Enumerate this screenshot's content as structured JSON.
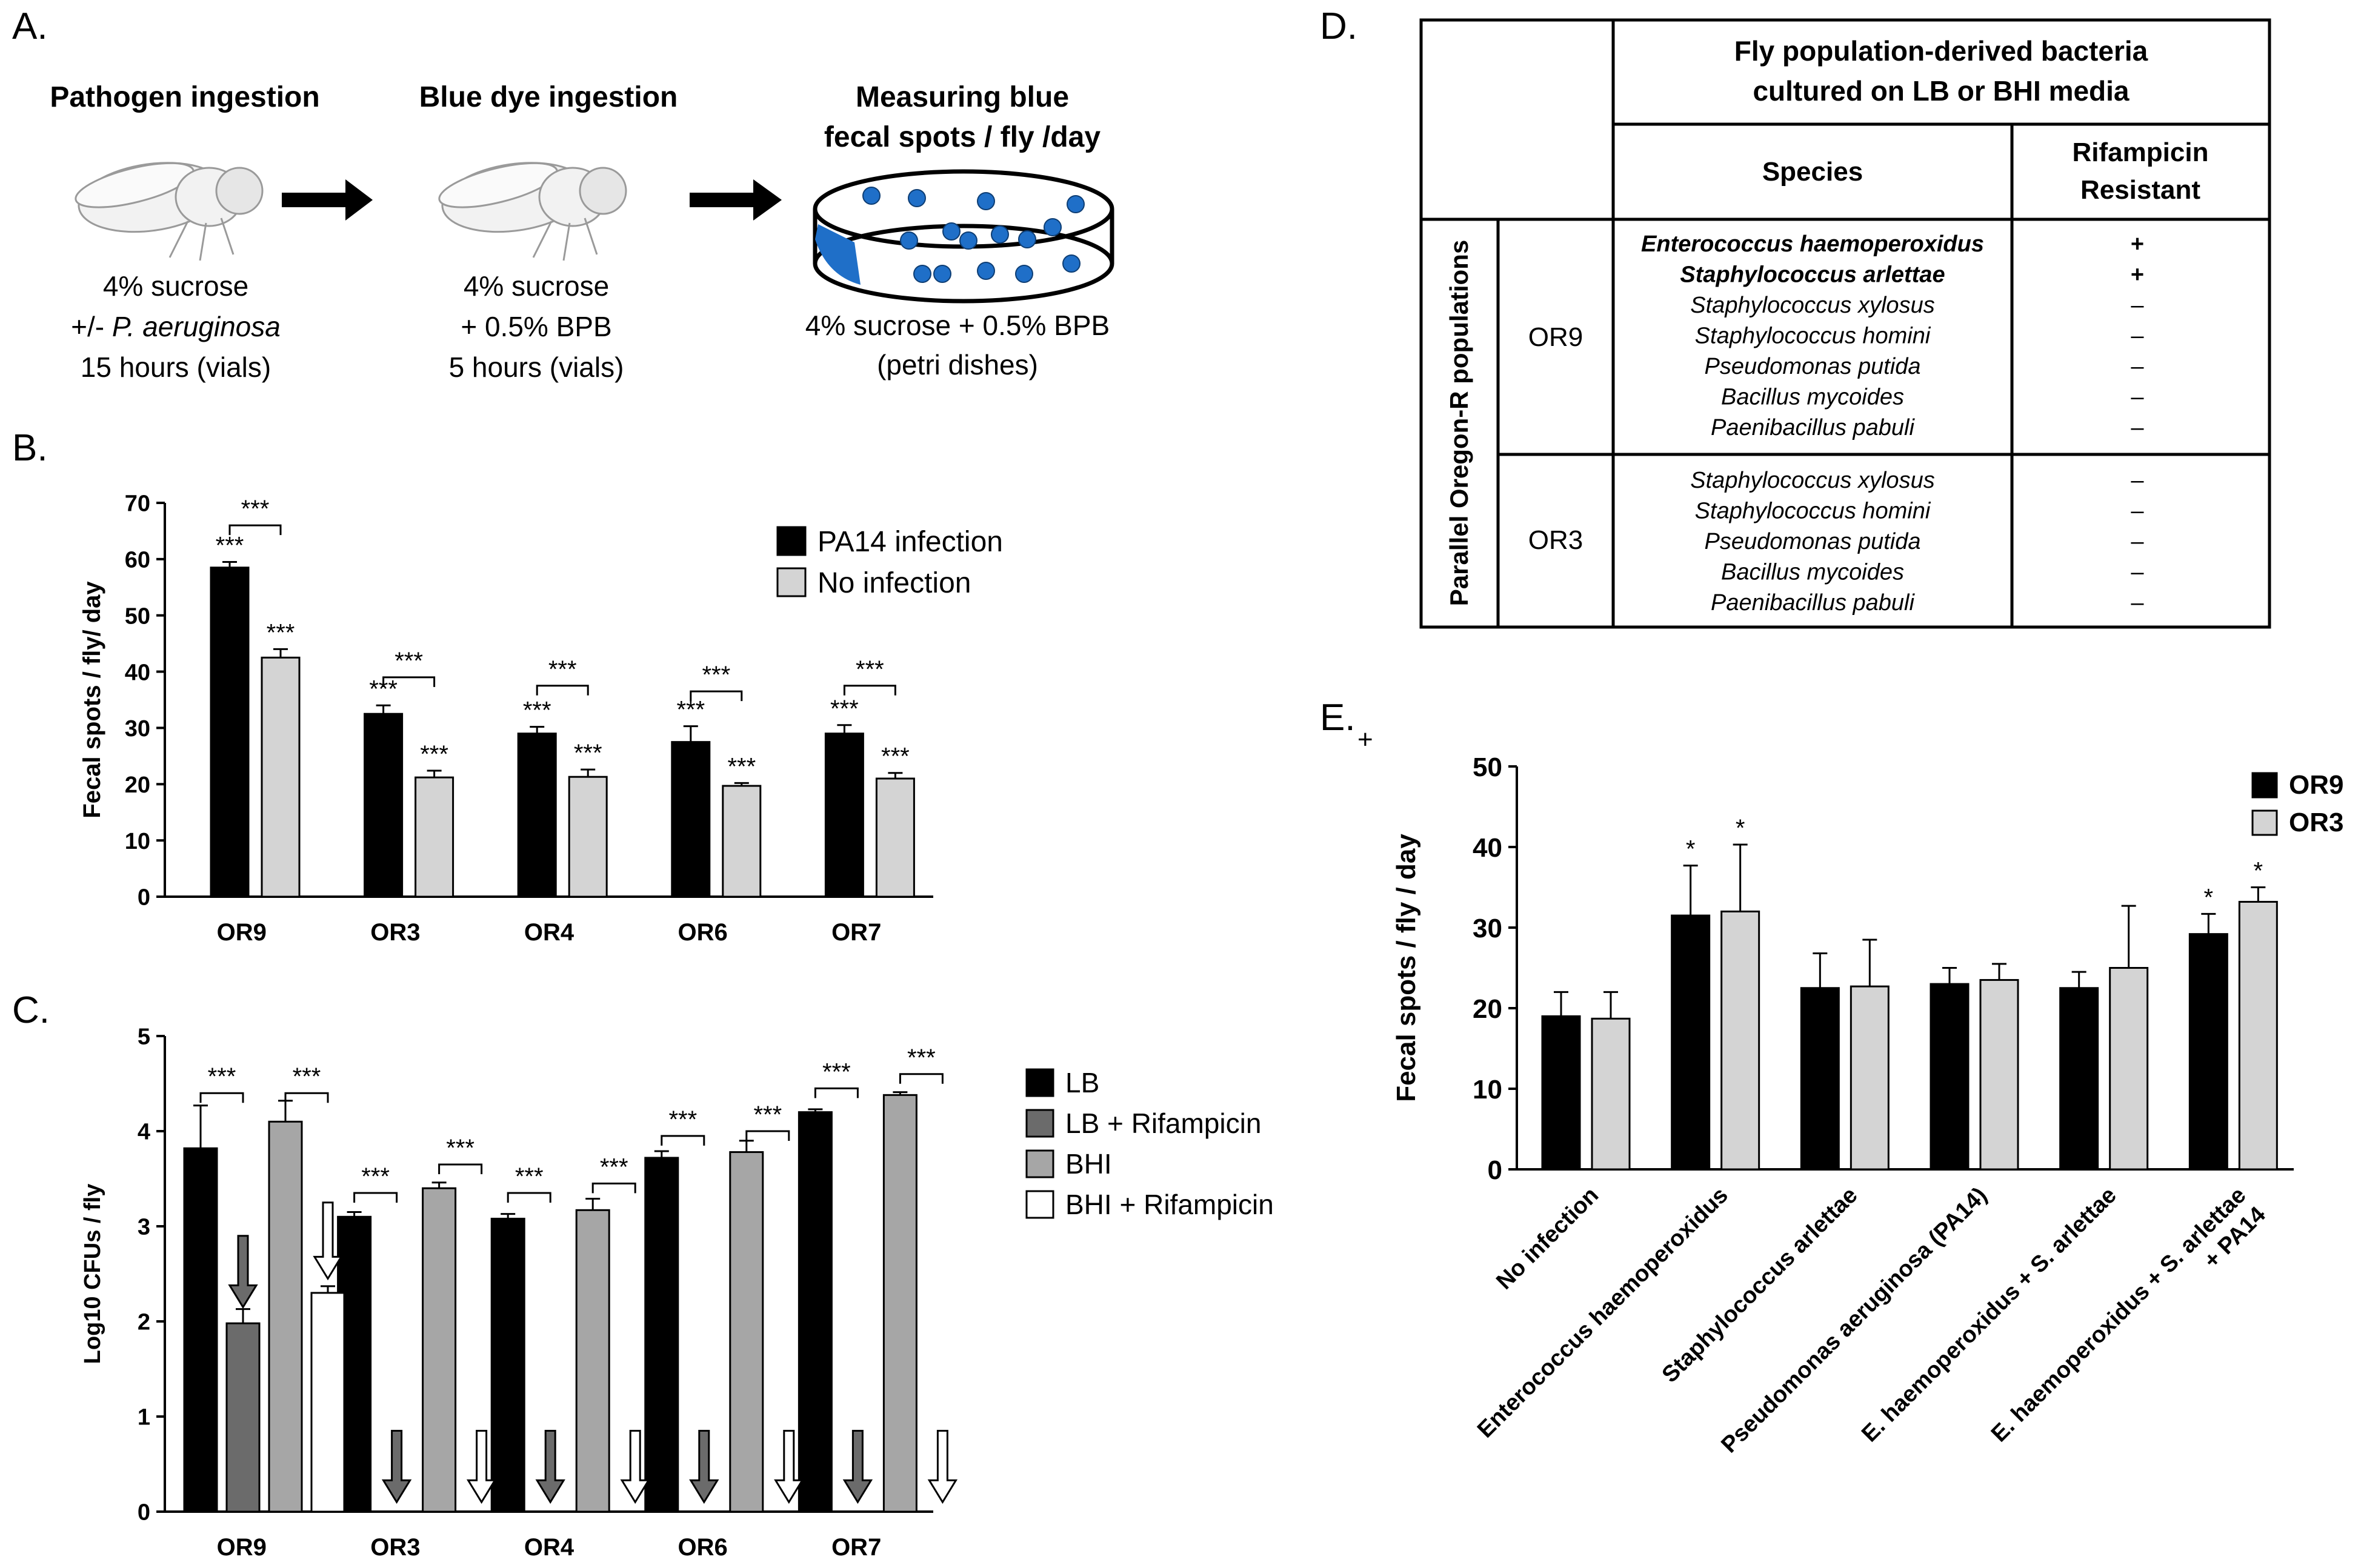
{
  "panelA": {
    "letter": "A.",
    "step1": {
      "title": "Pathogen ingestion",
      "line1": "4% sucrose",
      "line2_prefix": "+/- ",
      "line2_species": "P. aeruginosa",
      "line3": "15 hours (vials)"
    },
    "step2": {
      "title": "Blue dye ingestion",
      "line1": "4% sucrose",
      "line2": "+ 0.5% BPB",
      "line3": "5 hours (vials)"
    },
    "step3": {
      "title1": "Measuring blue",
      "title2": "fecal spots / fly /day",
      "line1": "4% sucrose + 0.5% BPB",
      "line2": "(petri dishes)"
    },
    "icons": {
      "fly1": "fly-icon",
      "fly2": "fly-icon",
      "arrow1": "arrow-right-icon",
      "arrow2": "arrow-right-icon",
      "dish": "petri-dish-icon"
    },
    "colors": {
      "spot": "#1f6fc8"
    }
  },
  "panelD": {
    "letter": "D.",
    "header_line1": "Fly population-derived bacteria",
    "header_line2": "cultured on LB or BHI media",
    "col_species": "Species",
    "col_rif1": "Rifampicin",
    "col_rif2": "Resistant",
    "row_label": "Parallel Oregon-R populations",
    "groups": [
      {
        "name": "OR9",
        "rows": [
          {
            "species": "Enterococcus haemoperoxidus",
            "rif": "+",
            "bold": true
          },
          {
            "species": "Staphylococcus arlettae",
            "rif": "+",
            "bold": true
          },
          {
            "species": "Staphylococcus xylosus",
            "rif": "–",
            "bold": false
          },
          {
            "species": "Staphylococcus homini",
            "rif": "–",
            "bold": false
          },
          {
            "species": "Pseudomonas putida",
            "rif": "–",
            "bold": false
          },
          {
            "species": "Bacillus mycoides",
            "rif": "–",
            "bold": false
          },
          {
            "species": "Paenibacillus pabuli",
            "rif": "–",
            "bold": false
          }
        ]
      },
      {
        "name": "OR3",
        "rows": [
          {
            "species": "Staphylococcus xylosus",
            "rif": "–",
            "bold": false
          },
          {
            "species": "Staphylococcus homini",
            "rif": "–",
            "bold": false
          },
          {
            "species": "Pseudomonas putida",
            "rif": "–",
            "bold": false
          },
          {
            "species": "Bacillus mycoides",
            "rif": "–",
            "bold": false
          },
          {
            "species": "Paenibacillus pabuli",
            "rif": "–",
            "bold": false
          }
        ]
      }
    ]
  },
  "colors": {
    "black": "#000000",
    "gray_light": "#d4d4d4",
    "gray_dark": "#6b6b6b",
    "gray_mid": "#a6a6a6",
    "white": "#ffffff"
  },
  "chart_data": [
    {
      "id": "B",
      "letter": "B.",
      "type": "bar",
      "ylabel": "Fecal spots / fly/ day",
      "xlabel": "",
      "ylim": [
        0,
        70
      ],
      "yticks": [
        0,
        10,
        20,
        30,
        40,
        50,
        60,
        70
      ],
      "categories": [
        "OR9",
        "OR3",
        "OR4",
        "OR6",
        "OR7"
      ],
      "series": [
        {
          "name": "PA14 infection",
          "color": "#000000",
          "values": [
            58.5,
            32.5,
            29,
            27.5,
            29
          ],
          "errors": [
            1,
            1.5,
            1.2,
            2.8,
            1.5
          ],
          "sig": [
            "***",
            "***",
            "***",
            "***",
            "***"
          ]
        },
        {
          "name": "No infection",
          "color": "#d4d4d4",
          "values": [
            42.5,
            21.2,
            21.3,
            19.7,
            21
          ],
          "errors": [
            1.5,
            1.2,
            1.3,
            0.5,
            1
          ],
          "sig": [
            "***",
            "***",
            "***",
            "***",
            "***"
          ]
        }
      ],
      "brackets": [
        {
          "category": 0,
          "label": "***",
          "y": 66
        },
        {
          "category": 1,
          "label": "***",
          "y": 39
        },
        {
          "category": 2,
          "label": "***",
          "y": 37.5
        },
        {
          "category": 3,
          "label": "***",
          "y": 36.5
        },
        {
          "category": 4,
          "label": "***",
          "y": 37.5
        }
      ],
      "legend_position": "top-right"
    },
    {
      "id": "C",
      "letter": "C.",
      "type": "bar",
      "ylabel": "Log10 CFUs / fly",
      "xlabel": "",
      "ylim": [
        0,
        5
      ],
      "yticks": [
        0,
        1,
        2,
        3,
        4,
        5
      ],
      "categories": [
        "OR9",
        "OR3",
        "OR4",
        "OR6",
        "OR7"
      ],
      "series": [
        {
          "name": "LB",
          "color": "#000000",
          "values": [
            3.82,
            3.1,
            3.08,
            3.72,
            4.2
          ],
          "errors": [
            0.45,
            0.05,
            0.05,
            0.07,
            0.03
          ]
        },
        {
          "name": "LB + Rifampicin",
          "color": "#6b6b6b",
          "values": [
            1.98,
            null,
            null,
            null,
            null
          ],
          "errors": [
            0.15,
            null,
            null,
            null,
            null
          ]
        },
        {
          "name": "BHI",
          "color": "#a6a6a6",
          "values": [
            4.1,
            3.4,
            3.17,
            3.78,
            4.38
          ],
          "errors": [
            0.22,
            0.06,
            0.12,
            0.12,
            0.03
          ]
        },
        {
          "name": "BHI + Rifampicin",
          "color": "#ffffff",
          "values": [
            2.3,
            null,
            null,
            null,
            null
          ],
          "errors": [
            0.07,
            null,
            null,
            null,
            null
          ]
        }
      ],
      "brackets": [
        {
          "category": 0,
          "pair": [
            0,
            1
          ],
          "label": "***",
          "y": 4.4
        },
        {
          "category": 0,
          "pair": [
            2,
            3
          ],
          "label": "***",
          "y": 4.4
        },
        {
          "category": 1,
          "pair": [
            0,
            1
          ],
          "label": "***",
          "y": 3.35
        },
        {
          "category": 1,
          "pair": [
            2,
            3
          ],
          "label": "***",
          "y": 3.65
        },
        {
          "category": 2,
          "pair": [
            0,
            1
          ],
          "label": "***",
          "y": 3.35
        },
        {
          "category": 2,
          "pair": [
            2,
            3
          ],
          "label": "***",
          "y": 3.45
        },
        {
          "category": 3,
          "pair": [
            0,
            1
          ],
          "label": "***",
          "y": 3.95
        },
        {
          "category": 3,
          "pair": [
            2,
            3
          ],
          "label": "***",
          "y": 4.0
        },
        {
          "category": 4,
          "pair": [
            0,
            1
          ],
          "label": "***",
          "y": 4.45
        },
        {
          "category": 4,
          "pair": [
            2,
            3
          ],
          "label": "***",
          "y": 4.6
        }
      ],
      "arrows": [
        {
          "category": 0,
          "series": 1,
          "from": 2.9,
          "to": 2.15
        },
        {
          "category": 0,
          "series": 3,
          "from": 3.25,
          "to": 2.45
        },
        {
          "category": 1,
          "series": 1,
          "from": 0.85,
          "to": 0.1
        },
        {
          "category": 1,
          "series": 3,
          "from": 0.85,
          "to": 0.1
        },
        {
          "category": 2,
          "series": 1,
          "from": 0.85,
          "to": 0.1
        },
        {
          "category": 2,
          "series": 3,
          "from": 0.85,
          "to": 0.1
        },
        {
          "category": 3,
          "series": 1,
          "from": 0.85,
          "to": 0.1
        },
        {
          "category": 3,
          "series": 3,
          "from": 0.85,
          "to": 0.1
        },
        {
          "category": 4,
          "series": 1,
          "from": 0.85,
          "to": 0.1
        },
        {
          "category": 4,
          "series": 3,
          "from": 0.85,
          "to": 0.1
        }
      ],
      "legend_position": "right"
    },
    {
      "id": "E",
      "letter": "E.",
      "mark": "+",
      "type": "bar",
      "ylabel": "Fecal spots / fly / day",
      "xlabel": "",
      "ylim": [
        0,
        50
      ],
      "yticks": [
        0,
        10,
        20,
        30,
        40,
        50
      ],
      "categories": [
        "No infection",
        "Enterococcus haemoperoxidus",
        "Staphylococcus arlettae",
        "Pseudomonas aeruginosa (PA14)",
        "E. haemoperoxidus + S. arlettae",
        "E. haemoperoxidus + S. arlettae\n+ PA14"
      ],
      "series": [
        {
          "name": "OR9",
          "color": "#000000",
          "values": [
            19,
            31.5,
            22.5,
            23,
            22.5,
            29.2
          ],
          "errors": [
            3,
            6.2,
            4.3,
            2,
            2,
            2.5
          ],
          "sig": [
            "",
            "*",
            "",
            "",
            "",
            "*"
          ]
        },
        {
          "name": "OR3",
          "color": "#d4d4d4",
          "values": [
            18.7,
            32,
            22.7,
            23.5,
            25,
            33.2
          ],
          "errors": [
            3.3,
            8.3,
            5.8,
            2,
            7.7,
            1.8
          ],
          "sig": [
            "",
            "*",
            "",
            "",
            "",
            "*"
          ]
        }
      ],
      "legend_position": "top-right"
    }
  ]
}
